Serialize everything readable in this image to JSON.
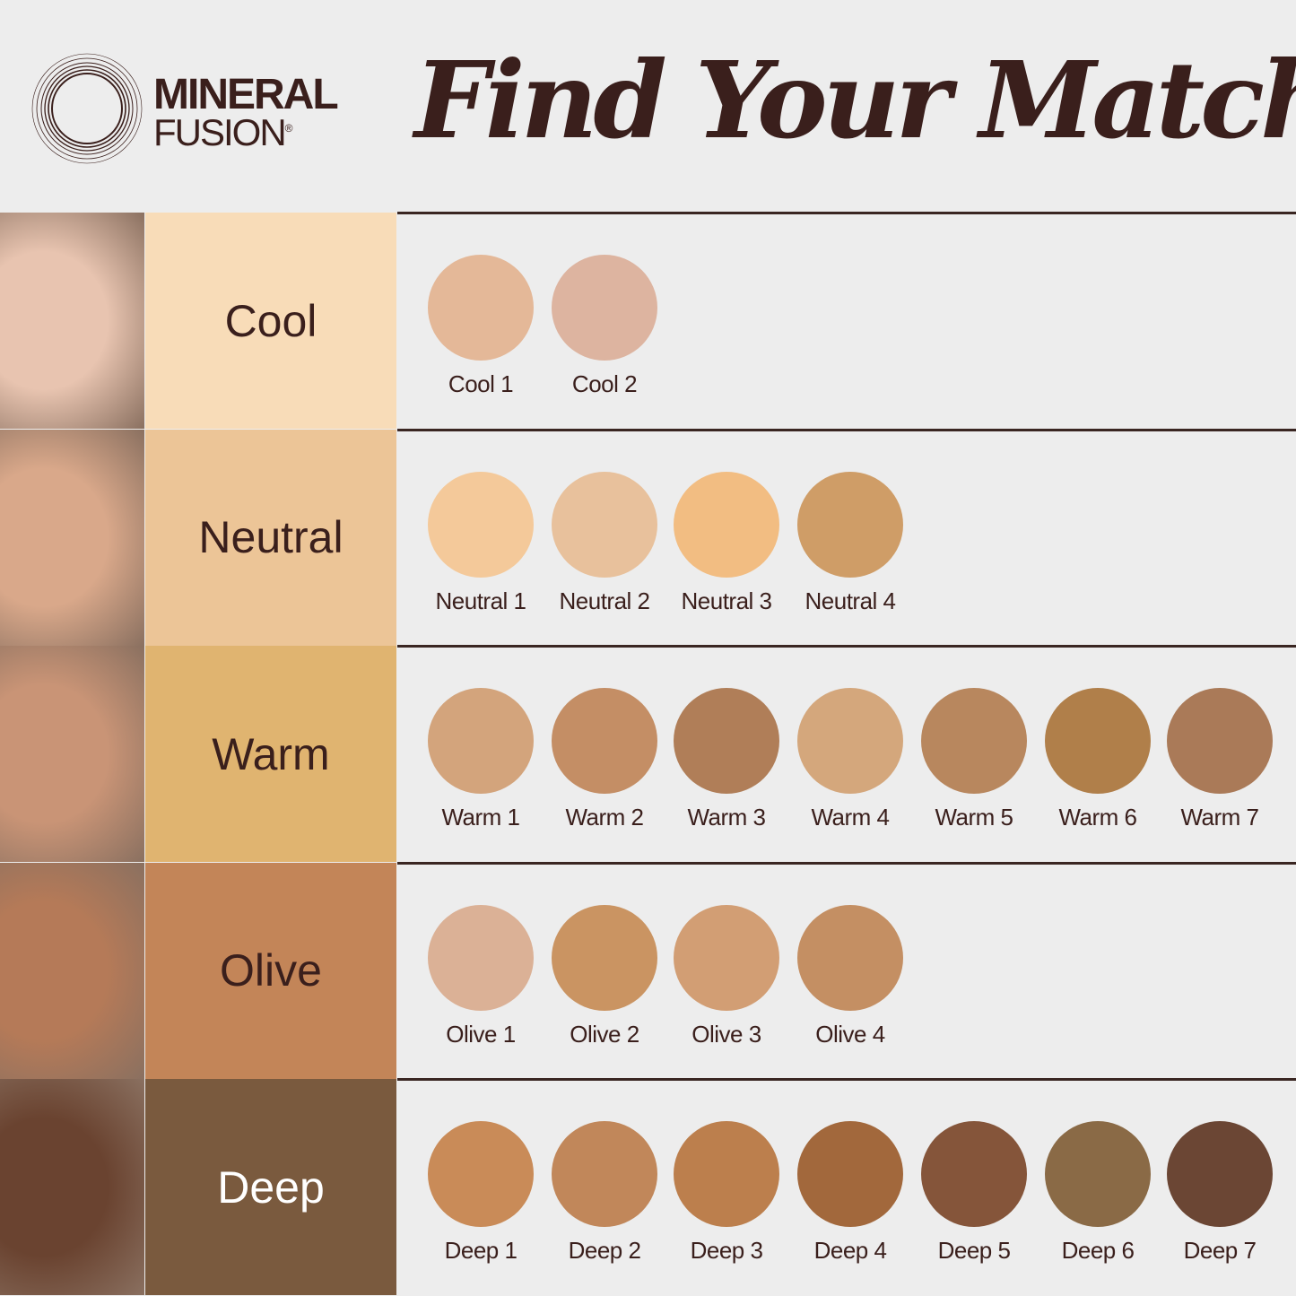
{
  "brand": {
    "line1": "MINERAL",
    "line2": "FUSION",
    "registered": "®"
  },
  "title": "Find Your Match",
  "rows": [
    {
      "label": "Cool",
      "label_bg": "#f8dcb8",
      "label_color": "#3a1f1c",
      "face_tone": "#e8c4b0",
      "shades": [
        {
          "name": "Cool 1",
          "color": "#e4b898"
        },
        {
          "name": "Cool 2",
          "color": "#ddb4a0"
        }
      ]
    },
    {
      "label": "Neutral",
      "label_bg": "#ecc597",
      "label_color": "#3a1f1c",
      "face_tone": "#d9a88a",
      "shades": [
        {
          "name": "Neutral 1",
          "color": "#f4c99a"
        },
        {
          "name": "Neutral 2",
          "color": "#e8c19c"
        },
        {
          "name": "Neutral 3",
          "color": "#f2bd82"
        },
        {
          "name": "Neutral 4",
          "color": "#cf9d67"
        }
      ]
    },
    {
      "label": "Warm",
      "label_bg": "#e0b470",
      "label_color": "#3a1f1c",
      "face_tone": "#c99476",
      "shades": [
        {
          "name": "Warm 1",
          "color": "#d3a47c"
        },
        {
          "name": "Warm 2",
          "color": "#c48e65"
        },
        {
          "name": "Warm 3",
          "color": "#b07e58"
        },
        {
          "name": "Warm 4",
          "color": "#d4a77c"
        },
        {
          "name": "Warm 5",
          "color": "#b8875e"
        },
        {
          "name": "Warm 6",
          "color": "#b07f4a"
        },
        {
          "name": "Warm 7",
          "color": "#aa7a58"
        }
      ]
    },
    {
      "label": "Olive",
      "label_bg": "#c38558",
      "label_color": "#3a1f1c",
      "face_tone": "#b57a58",
      "shades": [
        {
          "name": "Olive 1",
          "color": "#dbb196"
        },
        {
          "name": "Olive 2",
          "color": "#ca9462"
        },
        {
          "name": "Olive 3",
          "color": "#d29e74"
        },
        {
          "name": "Olive 4",
          "color": "#c48f63"
        }
      ]
    },
    {
      "label": "Deep",
      "label_bg": "#7a5a3e",
      "label_color": "#ffffff",
      "face_tone": "#6a4330",
      "shades": [
        {
          "name": "Deep 1",
          "color": "#c98b58"
        },
        {
          "name": "Deep 2",
          "color": "#c1875a"
        },
        {
          "name": "Deep 3",
          "color": "#bc7f4d"
        },
        {
          "name": "Deep 4",
          "color": "#a2683c"
        },
        {
          "name": "Deep 5",
          "color": "#85553a"
        },
        {
          "name": "Deep 6",
          "color": "#8a6a46"
        },
        {
          "name": "Deep 7",
          "color": "#6b4634"
        }
      ]
    }
  ]
}
